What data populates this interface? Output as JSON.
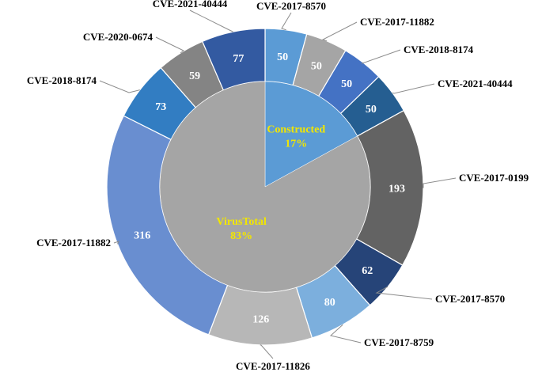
{
  "chart_data": {
    "type": "pie",
    "subtype": "nested-donut",
    "inner": {
      "slices": [
        {
          "label": "Constructed",
          "percent_label": "17%",
          "value": 17,
          "color": "#5b9bd5"
        },
        {
          "label": "VirusTotal",
          "percent_label": "83%",
          "value": 83,
          "color": "#a5a5a5"
        }
      ]
    },
    "outer": {
      "slices": [
        {
          "label": "CVE-2017-8570",
          "value": 50,
          "color": "#5b9bd5",
          "group": "Constructed"
        },
        {
          "label": "CVE-2017-11882",
          "value": 50,
          "color": "#a5a5a5",
          "group": "Constructed"
        },
        {
          "label": "CVE-2018-8174",
          "value": 50,
          "color": "#4472c4",
          "group": "Constructed"
        },
        {
          "label": "CVE-2021-40444",
          "value": 50,
          "color": "#255e91",
          "group": "Constructed"
        },
        {
          "label": "CVE-2017-0199",
          "value": 193,
          "color": "#636363",
          "group": "VirusTotal"
        },
        {
          "label": "CVE-2017-8570",
          "value": 62,
          "color": "#264478",
          "group": "VirusTotal"
        },
        {
          "label": "CVE-2017-8759",
          "value": 80,
          "color": "#7cafdd",
          "group": "VirusTotal"
        },
        {
          "label": "CVE-2017-11826",
          "value": 126,
          "color": "#b7b7b7",
          "group": "VirusTotal"
        },
        {
          "label": "CVE-2017-11882",
          "value": 316,
          "color": "#698ed0",
          "group": "VirusTotal"
        },
        {
          "label": "CVE-2018-8174",
          "value": 73,
          "color": "#327dc2",
          "group": "VirusTotal"
        },
        {
          "label": "CVE-2020-0674",
          "value": 59,
          "color": "#848484",
          "group": "VirusTotal"
        },
        {
          "label": "CVE-2021-40444",
          "value": 77,
          "color": "#335aa1",
          "group": "VirusTotal"
        }
      ]
    },
    "legend": "none",
    "label_color_inner": "#f2e600",
    "label_color_values": "#ffffff"
  }
}
